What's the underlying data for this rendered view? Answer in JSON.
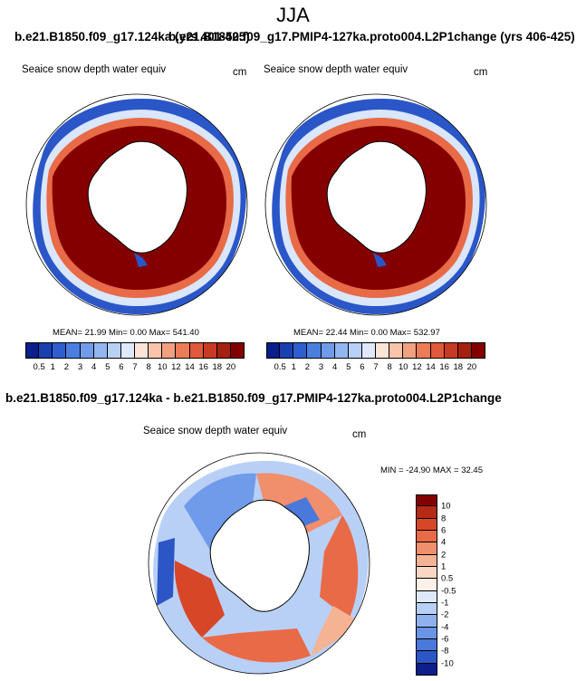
{
  "season": "JJA",
  "case_a": "b.e21.B1850.f09_g17.124ka",
  "case_a_years": "(yrs 401-425)",
  "case_b": "b.e21.B1850.f09_g17.PMIP4-127ka.proto004.L2P1change",
  "case_b_years": "(yrs 406-425)",
  "diff_title": "b.e21.B1850.f09_g17.124ka - b.e21.B1850.f09_g17.PMIP4-127ka.proto004.L2P1change",
  "variable": "Seaice snow depth water equiv",
  "units": "cm",
  "panel_a_stats": "MEAN=  21.99  Min=   0.00  Max= 541.40",
  "panel_b_stats": "MEAN=  22.44  Min=   0.00  Max= 532.97",
  "diff_stats": "MIN = -24.90 MAX =  32.45",
  "abs_levels": [
    "0.5",
    "1",
    "2",
    "3",
    "4",
    "5",
    "6",
    "7",
    "8",
    "10",
    "12",
    "14",
    "16",
    "18",
    "20"
  ],
  "abs_colors": [
    "#0a1e8c",
    "#1a3fb0",
    "#2e5fcf",
    "#4a7fe0",
    "#6f9bea",
    "#93b6f0",
    "#b9d0f6",
    "#dfe9fb",
    "#fbe3d6",
    "#f7c4ab",
    "#f2a180",
    "#ec7c56",
    "#e1583a",
    "#c93a24",
    "#a5200f",
    "#840000"
  ],
  "diff_levels": [
    "10",
    "8",
    "6",
    "4",
    "2",
    "1",
    "0.5",
    "-0.5",
    "-1",
    "-2",
    "-4",
    "-6",
    "-8",
    "-10"
  ],
  "diff_colors": [
    "#840000",
    "#b52a15",
    "#d84628",
    "#e96a47",
    "#f18e6c",
    "#f5b394",
    "#fad6c4",
    "#fdf0e8",
    "#dde9f9",
    "#b9d0f6",
    "#8fb2ef",
    "#6a94e6",
    "#4a78db",
    "#2c56c6",
    "#0d1f8a"
  ]
}
